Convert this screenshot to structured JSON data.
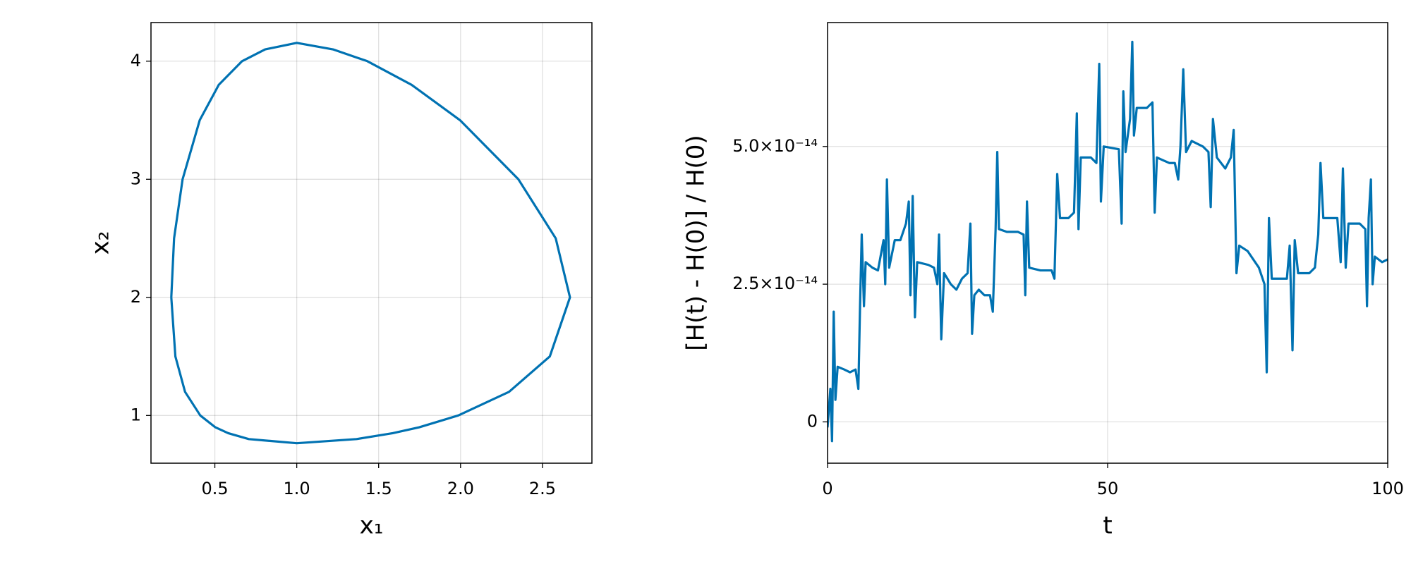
{
  "chart_data": [
    {
      "type": "line",
      "xlabel": "x₁",
      "ylabel": "x₂",
      "color": "#0072b2",
      "grid": true,
      "x": [
        0.234,
        0.259,
        0.318,
        0.411,
        0.503,
        0.5815,
        0.707,
        1.0,
        1.365,
        1.586,
        1.748,
        1.986,
        2.296,
        2.545,
        2.668,
        2.581,
        2.353,
        1.997,
        1.701,
        1.431,
        1.221,
        1.0,
        0.807,
        0.666,
        0.524,
        0.4075,
        0.303,
        0.251,
        0.234
      ],
      "values": [
        2.0,
        1.5,
        1.2,
        1.0,
        0.9,
        0.85,
        0.8,
        0.765,
        0.8,
        0.85,
        0.9,
        1.0,
        1.2,
        1.5,
        2.0,
        2.5,
        3.0,
        3.5,
        3.8,
        4.0,
        4.1,
        4.155,
        4.1,
        4.0,
        3.8,
        3.5,
        3.0,
        2.5,
        2.0
      ],
      "xlim": [
        0.11,
        2.802
      ],
      "xticks": [
        0.5,
        {
          "value": 1.0,
          "label": "1.0"
        },
        1.5,
        {
          "value": 2.0,
          "label": "2.0"
        },
        2.5
      ],
      "ylim": [
        0.596,
        4.327
      ],
      "yticks": [
        1,
        2,
        3,
        4
      ]
    },
    {
      "type": "line",
      "xlabel": "t",
      "ylabel": "[H(t) - H(0)] / H(0)",
      "color": "#0072b2",
      "grid": true,
      "x": [
        0,
        0.5,
        0.8,
        1.1,
        1.4,
        1.8,
        3,
        4,
        5,
        5.5,
        5.8,
        6.1,
        6.5,
        6.8,
        8,
        9,
        10,
        10.3,
        10.6,
        11,
        12,
        13,
        14,
        14.5,
        14.8,
        15.2,
        15.6,
        16,
        18,
        19,
        19.6,
        19.9,
        20.3,
        20.8,
        22,
        23,
        24,
        25,
        25.5,
        25.8,
        26.2,
        27,
        28,
        29,
        29.5,
        30,
        30.3,
        30.6,
        32,
        34,
        35,
        35.3,
        35.6,
        36,
        38,
        40,
        40.5,
        41,
        41.5,
        43,
        44,
        44.5,
        44.8,
        45.2,
        47,
        48,
        48.5,
        48.8,
        49.3,
        52,
        52.5,
        52.8,
        53.2,
        54,
        54.4,
        54.7,
        55.2,
        57,
        58,
        58.4,
        58.8,
        61,
        62,
        62.6,
        63,
        63.5,
        64,
        65,
        67,
        68,
        68.4,
        68.8,
        69.5,
        71,
        72,
        72.5,
        73,
        73.5,
        75,
        77,
        78,
        78.4,
        78.8,
        79.3,
        81,
        82,
        82.5,
        83,
        83.4,
        84,
        86,
        87,
        87.6,
        88,
        88.5,
        90,
        91,
        91.6,
        92,
        92.5,
        93,
        95,
        96,
        96.3,
        96.6,
        97,
        97.3,
        97.7,
        99,
        100
      ],
      "values": [
        -1e-15,
        6e-15,
        -3.5e-15,
        2e-14,
        4e-15,
        1e-14,
        9.5e-15,
        9e-15,
        9.5e-15,
        6e-15,
        2.1e-14,
        3.4e-14,
        2.1e-14,
        2.9e-14,
        2.8e-14,
        2.75e-14,
        3.3e-14,
        2.5e-14,
        4.4e-14,
        2.8e-14,
        3.3e-14,
        3.3e-14,
        3.6e-14,
        4e-14,
        2.3e-14,
        4.1e-14,
        1.9e-14,
        2.9e-14,
        2.85e-14,
        2.8e-14,
        2.5e-14,
        3.4e-14,
        1.5e-14,
        2.7e-14,
        2.5e-14,
        2.4e-14,
        2.6e-14,
        2.7e-14,
        3.6e-14,
        1.6e-14,
        2.3e-14,
        2.4e-14,
        2.3e-14,
        2.3e-14,
        2e-14,
        3.5e-14,
        4.9e-14,
        3.5e-14,
        3.45e-14,
        3.45e-14,
        3.4e-14,
        2.3e-14,
        4e-14,
        2.8e-14,
        2.75e-14,
        2.75e-14,
        2.6e-14,
        4.5e-14,
        3.7e-14,
        3.7e-14,
        3.8e-14,
        5.6e-14,
        3.5e-14,
        4.8e-14,
        4.8e-14,
        4.7e-14,
        6.5e-14,
        4e-14,
        5e-14,
        4.95e-14,
        3.6e-14,
        6e-14,
        4.9e-14,
        5.5e-14,
        6.9e-14,
        5.2e-14,
        5.7e-14,
        5.7e-14,
        5.8e-14,
        3.8e-14,
        4.8e-14,
        4.7e-14,
        4.7e-14,
        4.4e-14,
        5e-14,
        6.4e-14,
        4.9e-14,
        5.1e-14,
        5e-14,
        4.9e-14,
        3.9e-14,
        5.5e-14,
        4.8e-14,
        4.6e-14,
        4.8e-14,
        5.3e-14,
        2.7e-14,
        3.2e-14,
        3.1e-14,
        2.8e-14,
        2.5e-14,
        9e-15,
        3.7e-14,
        2.6e-14,
        2.6e-14,
        2.6e-14,
        3.2e-14,
        1.3e-14,
        3.3e-14,
        2.7e-14,
        2.7e-14,
        2.8e-14,
        3.4e-14,
        4.7e-14,
        3.7e-14,
        3.7e-14,
        3.7e-14,
        2.9e-14,
        4.6e-14,
        2.8e-14,
        3.6e-14,
        3.6e-14,
        3.5e-14,
        2.1e-14,
        3.7e-14,
        4.4e-14,
        2.5e-14,
        3e-14,
        2.9e-14,
        2.95e-14
      ],
      "xlim": [
        0,
        100
      ],
      "xticks": [
        0,
        50,
        100
      ],
      "ylim": [
        -7.5e-15,
        7.25e-14
      ],
      "yticks": [
        0,
        {
          "value": 2.5e-14,
          "label": "2.5×10⁻¹⁴"
        },
        {
          "value": 5e-14,
          "label": "5.0×10⁻¹⁴"
        }
      ]
    }
  ]
}
